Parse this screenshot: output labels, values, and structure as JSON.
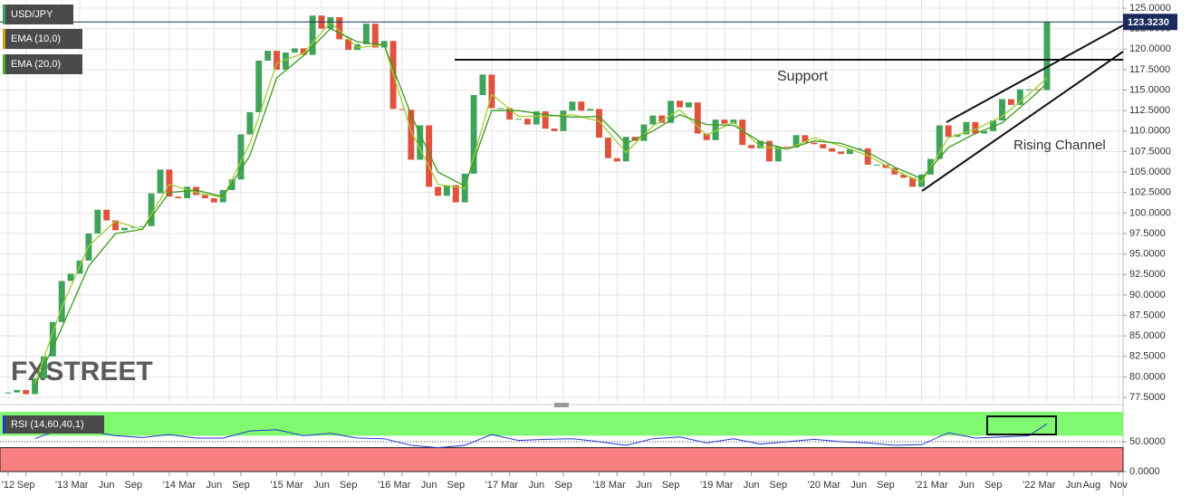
{
  "chart_data": [
    {
      "type": "candlestick",
      "title": "USD/JPY",
      "x": [
        6,
        7,
        8,
        9,
        10,
        11,
        12,
        13,
        14,
        15,
        16,
        17,
        18,
        19,
        20,
        21,
        22,
        23,
        24,
        25,
        26,
        27,
        28,
        29,
        30,
        31,
        32,
        33,
        34,
        35,
        36,
        37,
        38,
        39,
        40,
        41,
        42,
        43,
        44,
        45,
        46,
        47,
        48,
        49,
        50,
        51,
        52,
        53,
        54,
        55,
        56,
        57,
        58,
        59,
        60,
        61,
        62,
        63,
        64,
        65,
        66,
        67,
        68,
        69,
        70,
        71,
        72,
        73,
        74,
        75,
        76,
        77,
        78,
        79,
        80,
        81,
        82,
        83,
        84,
        85,
        86,
        87,
        88,
        89,
        90,
        91,
        92,
        93,
        94,
        95,
        96,
        97,
        98,
        99,
        100,
        101,
        102,
        103,
        104,
        105,
        106,
        107,
        108,
        109,
        110,
        111,
        112,
        113,
        114,
        115,
        116,
        117,
        118,
        119,
        120,
        121,
        122
      ],
      "series": [
        {
          "name": "USD/JPY",
          "up_color": "#3fa35a",
          "down_color": "#e0523c",
          "values": [
            78.1,
            78.4,
            77.9,
            79.8,
            82.5,
            86.7,
            91.7,
            92.6,
            94.2,
            97.5,
            100.4,
            99.1,
            97.9,
            98.2,
            98.3,
            98.4,
            102.4,
            105.3,
            102.0,
            101.8,
            103.2,
            102.2,
            101.8,
            101.3,
            102.8,
            104.1,
            109.6,
            112.3,
            118.6,
            119.8,
            117.5,
            119.6,
            120.1,
            119.3,
            124.1,
            122.5,
            123.9,
            121.2,
            119.9,
            120.6,
            123.1,
            120.2,
            121.0,
            112.7,
            112.6,
            106.5,
            110.7,
            103.2,
            102.1,
            103.4,
            101.3,
            104.8,
            114.4,
            116.9,
            112.8,
            112.8,
            111.4,
            111.5,
            110.8,
            112.4,
            110.3,
            110.0,
            112.5,
            113.6,
            112.5,
            112.7,
            109.2,
            106.7,
            106.3,
            109.3,
            108.8,
            110.8,
            111.9,
            111.0,
            113.7,
            112.9,
            113.5,
            109.7,
            108.9,
            111.4,
            110.9,
            111.4,
            108.3,
            107.9,
            108.8,
            106.3,
            108.1,
            108.0,
            109.5,
            108.6,
            108.4,
            107.9,
            107.5,
            107.2,
            107.8,
            107.9,
            105.9,
            105.9,
            105.5,
            104.7,
            104.3,
            103.2,
            104.7,
            106.6,
            110.7,
            109.3,
            109.6,
            111.1,
            109.7,
            110.0,
            111.3,
            113.9,
            113.2,
            115.1,
            115.1,
            115.0,
            123.3
          ]
        },
        {
          "name": "EMA (10,0)",
          "color": "#c8a415",
          "line_color": "#9fcf2e",
          "x": [
            9,
            12,
            15,
            18,
            21,
            24,
            27,
            30,
            33,
            36,
            39,
            42,
            45,
            48,
            51,
            54,
            57,
            60,
            63,
            66,
            69,
            72,
            75,
            78,
            81,
            84,
            87,
            90,
            93,
            96,
            99,
            102,
            105,
            108,
            111,
            114,
            117,
            120,
            122
          ],
          "values": [
            79.2,
            88.5,
            96,
            99,
            98,
            103.5,
            102.5,
            101.9,
            108.5,
            118.3,
            119.5,
            123.3,
            120.2,
            120.5,
            110,
            103.5,
            103,
            114.5,
            111.8,
            111.8,
            112,
            111.2,
            107.4,
            110.6,
            112.6,
            109.5,
            111.1,
            108.1,
            107.8,
            109.2,
            108.2,
            107,
            105.2,
            103.8,
            109.2,
            110.2,
            111.8,
            114.5,
            116.5
          ]
        },
        {
          "name": "EMA (20,0)",
          "color": "#4caf2a",
          "line_color": "#3c9a1e",
          "x": [
            9,
            12,
            15,
            18,
            21,
            24,
            27,
            30,
            33,
            36,
            39,
            42,
            45,
            48,
            51,
            54,
            57,
            60,
            63,
            66,
            69,
            72,
            75,
            78,
            81,
            84,
            87,
            90,
            93,
            96,
            99,
            102,
            105,
            108,
            111,
            114,
            117,
            120,
            122
          ],
          "values": [
            78.9,
            86,
            93.5,
            97.5,
            98,
            102.5,
            102.8,
            102,
            107,
            116.5,
            119.2,
            122.5,
            120.9,
            120.5,
            112,
            105,
            103.3,
            112.5,
            112.5,
            112,
            111.7,
            111.8,
            108.5,
            110,
            112,
            110.8,
            110.7,
            108.7,
            107.8,
            108.8,
            108.5,
            107.4,
            105.6,
            104.2,
            108,
            109.7,
            111,
            113.8,
            115.8
          ]
        }
      ],
      "last_price": {
        "value": 123.323,
        "label": "123.3230"
      },
      "annotations": [
        "Support",
        "Rising Channel"
      ],
      "watermark": "FXSTREET",
      "xlim": [
        5.1,
        130.5
      ],
      "xticks": [
        {
          "value": 6,
          "label": "'12"
        },
        {
          "value": 8,
          "label": "Sep"
        },
        {
          "value": 12,
          "label": "'13"
        },
        {
          "value": 14,
          "label": "Mar"
        },
        {
          "value": 17,
          "label": "Jun"
        },
        {
          "value": 20,
          "label": "Sep"
        },
        {
          "value": 24,
          "label": "'14"
        },
        {
          "value": 26,
          "label": "Mar"
        },
        {
          "value": 29,
          "label": "Jun"
        },
        {
          "value": 32,
          "label": "Sep"
        },
        {
          "value": 36,
          "label": "'15"
        },
        {
          "value": 38,
          "label": "Mar"
        },
        {
          "value": 41,
          "label": "Jun"
        },
        {
          "value": 44,
          "label": "Sep"
        },
        {
          "value": 48,
          "label": "'16"
        },
        {
          "value": 50,
          "label": "Mar"
        },
        {
          "value": 53,
          "label": "Jun"
        },
        {
          "value": 56,
          "label": "Sep"
        },
        {
          "value": 60,
          "label": "'17"
        },
        {
          "value": 62,
          "label": "Mar"
        },
        {
          "value": 65,
          "label": "Jun"
        },
        {
          "value": 68,
          "label": "Sep"
        },
        {
          "value": 72,
          "label": "'18"
        },
        {
          "value": 74,
          "label": "Mar"
        },
        {
          "value": 77,
          "label": "Jun"
        },
        {
          "value": 80,
          "label": "Sep"
        },
        {
          "value": 84,
          "label": "'19"
        },
        {
          "value": 86,
          "label": "Mar"
        },
        {
          "value": 89,
          "label": "Jun"
        },
        {
          "value": 92,
          "label": "Sep"
        },
        {
          "value": 96,
          "label": "'20"
        },
        {
          "value": 98,
          "label": "Mar"
        },
        {
          "value": 101,
          "label": "Jun"
        },
        {
          "value": 104,
          "label": "Sep"
        },
        {
          "value": 108,
          "label": "'21"
        },
        {
          "value": 110,
          "label": "Mar"
        },
        {
          "value": 113,
          "label": "Jun"
        },
        {
          "value": 116,
          "label": "Sep"
        },
        {
          "value": 120,
          "label": "'22"
        },
        {
          "value": 122,
          "label": "Mar"
        },
        {
          "value": 125,
          "label": "Jun"
        },
        {
          "value": 127,
          "label": "Aug"
        },
        {
          "value": 130,
          "label": "Nov"
        }
      ],
      "ylim": [
        76.95,
        126
      ],
      "yticks": [
        {
          "value": 77.5,
          "label": "77.5000"
        },
        {
          "value": 80,
          "label": "80.0000"
        },
        {
          "value": 82.5,
          "label": "82.5000"
        },
        {
          "value": 85,
          "label": "85.0000"
        },
        {
          "value": 87.5,
          "label": "87.5000"
        },
        {
          "value": 90,
          "label": "90.0000"
        },
        {
          "value": 92.5,
          "label": "92.5000"
        },
        {
          "value": 95,
          "label": "95.0000"
        },
        {
          "value": 97.5,
          "label": "97.5000"
        },
        {
          "value": 100,
          "label": "100.0000"
        },
        {
          "value": 102.5,
          "label": "102.5000"
        },
        {
          "value": 105,
          "label": "105.0000"
        },
        {
          "value": 107.5,
          "label": "107.5000"
        },
        {
          "value": 110,
          "label": "110.0000"
        },
        {
          "value": 112.5,
          "label": "112.5000"
        },
        {
          "value": 115,
          "label": "115.0000"
        },
        {
          "value": 117.5,
          "label": "117.5000"
        },
        {
          "value": 120,
          "label": "120.0000"
        },
        {
          "value": 122.5,
          "label": "122.5000"
        },
        {
          "value": 125,
          "label": "125.0000"
        }
      ],
      "grid": true
    },
    {
      "type": "line",
      "title": "RSI (14,60,40,1)",
      "x": [
        9,
        12,
        15,
        18,
        21,
        24,
        27,
        30,
        33,
        36,
        39,
        42,
        45,
        48,
        51,
        54,
        57,
        60,
        63,
        66,
        69,
        72,
        75,
        78,
        81,
        84,
        87,
        90,
        93,
        96,
        99,
        102,
        105,
        108,
        111,
        114,
        117,
        120,
        122
      ],
      "series": [
        {
          "name": "RSI (14,60,40,1)",
          "color": "#2436d6",
          "values": [
            55,
            72,
            68,
            60,
            57,
            62,
            56,
            56,
            68,
            70,
            60,
            64,
            56,
            55,
            44,
            40,
            44,
            62,
            52,
            54,
            55,
            50,
            44,
            55,
            58,
            48,
            55,
            46,
            50,
            54,
            50,
            48,
            44,
            45,
            65,
            56,
            58,
            60,
            80
          ]
        }
      ],
      "upper_band": 60,
      "lower_band": 40,
      "upper_color": "#80f870",
      "lower_color": "#f88080",
      "xlim": [
        5.1,
        130.5
      ],
      "ylim": [
        0,
        100
      ],
      "yticks": [
        {
          "value": 0,
          "label": "0.0000"
        },
        {
          "value": 50,
          "label": "50.0000"
        }
      ]
    }
  ]
}
